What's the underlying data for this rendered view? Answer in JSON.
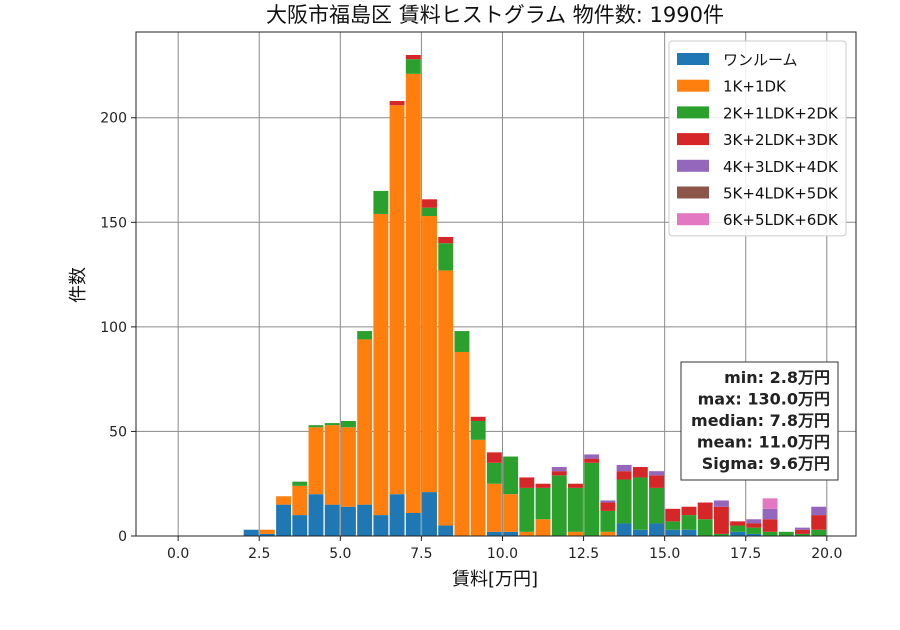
{
  "chart_data": {
    "type": "bar",
    "stacked": true,
    "title": "大阪市福島区 賃料ヒストグラム 物件数: 1990件",
    "xlabel": "賃料[万円]",
    "ylabel": "件数",
    "xlim": [
      -1.3,
      20.9
    ],
    "ylim": [
      0,
      241
    ],
    "x_ticks": [
      "0.0",
      "2.5",
      "5.0",
      "7.5",
      "10.0",
      "12.5",
      "15.0",
      "17.5",
      "20.0"
    ],
    "y_ticks": [
      "0",
      "50",
      "100",
      "150",
      "200"
    ],
    "grid": true,
    "legend_position": "top-right",
    "bin_width": 0.5,
    "x": [
      2.25,
      2.75,
      3.25,
      3.75,
      4.25,
      4.75,
      5.25,
      5.75,
      6.25,
      6.75,
      7.25,
      7.75,
      8.25,
      8.75,
      9.25,
      9.75,
      10.25,
      10.75,
      11.25,
      11.75,
      12.25,
      12.75,
      13.25,
      13.75,
      14.25,
      14.75,
      15.25,
      15.75,
      16.25,
      16.75,
      17.25,
      17.75,
      18.25,
      18.75,
      19.25,
      19.75
    ],
    "series": [
      {
        "name": "ワンルーム",
        "color": "#1f77b4",
        "values": [
          3,
          1,
          15,
          10,
          20,
          15,
          14,
          15,
          10,
          20,
          11,
          21,
          5,
          0,
          0,
          2,
          2,
          0,
          0,
          0,
          0,
          0,
          0,
          6,
          3,
          6,
          3,
          3,
          0,
          0,
          2,
          1,
          0,
          0,
          0,
          0
        ]
      },
      {
        "name": "1K+1DK",
        "color": "#ff7f0e",
        "values": [
          0,
          2,
          4,
          14,
          32,
          38,
          38,
          79,
          144,
          186,
          210,
          132,
          122,
          88,
          46,
          23,
          18,
          2,
          8,
          0,
          2,
          0,
          2,
          0,
          0,
          0,
          0,
          0,
          0,
          0,
          0,
          0,
          0,
          0,
          0,
          0
        ]
      },
      {
        "name": "2K+1LDK+2DK",
        "color": "#2ca02c",
        "values": [
          0,
          0,
          0,
          2,
          1,
          1,
          3,
          4,
          11,
          0,
          7,
          4,
          13,
          10,
          9,
          10,
          18,
          21,
          15,
          29,
          21,
          35,
          10,
          21,
          25,
          17,
          4,
          7,
          8,
          1,
          3,
          3,
          2,
          2,
          1,
          3
        ]
      },
      {
        "name": "3K+2LDK+3DK",
        "color": "#d62728",
        "values": [
          0,
          0,
          0,
          0,
          0,
          0,
          0,
          0,
          0,
          2,
          2,
          4,
          3,
          0,
          2,
          5,
          0,
          5,
          2,
          2,
          2,
          2,
          4,
          4,
          5,
          6,
          6,
          4,
          8,
          13,
          2,
          2,
          6,
          0,
          2,
          7
        ]
      },
      {
        "name": "4K+3LDK+4DK",
        "color": "#9467bd",
        "values": [
          0,
          0,
          0,
          0,
          0,
          0,
          0,
          0,
          0,
          0,
          0,
          0,
          0,
          0,
          0,
          0,
          0,
          0,
          0,
          2,
          0,
          2,
          1,
          3,
          0,
          2,
          0,
          0,
          0,
          3,
          0,
          2,
          5,
          0,
          1,
          4
        ]
      },
      {
        "name": "5K+4LDK+5DK",
        "color": "#8c564b",
        "values": [
          0,
          0,
          0,
          0,
          0,
          0,
          0,
          0,
          0,
          0,
          0,
          0,
          0,
          0,
          0,
          0,
          0,
          0,
          0,
          0,
          0,
          0,
          0,
          0,
          0,
          0,
          0,
          0,
          0,
          0,
          0,
          0,
          0,
          0,
          0,
          0
        ]
      },
      {
        "name": "6K+5LDK+6DK",
        "color": "#e377c2",
        "values": [
          0,
          0,
          0,
          0,
          0,
          0,
          0,
          0,
          0,
          0,
          0,
          0,
          0,
          0,
          0,
          0,
          0,
          0,
          0,
          0,
          0,
          0,
          0,
          0,
          0,
          0,
          0,
          0,
          0,
          0,
          0,
          0,
          5,
          0,
          0,
          0
        ]
      }
    ],
    "stats": [
      "min: 2.8万円",
      "max: 130.0万円",
      "median: 7.8万円",
      "mean: 11.0万円",
      "Sigma: 9.6万円"
    ]
  }
}
